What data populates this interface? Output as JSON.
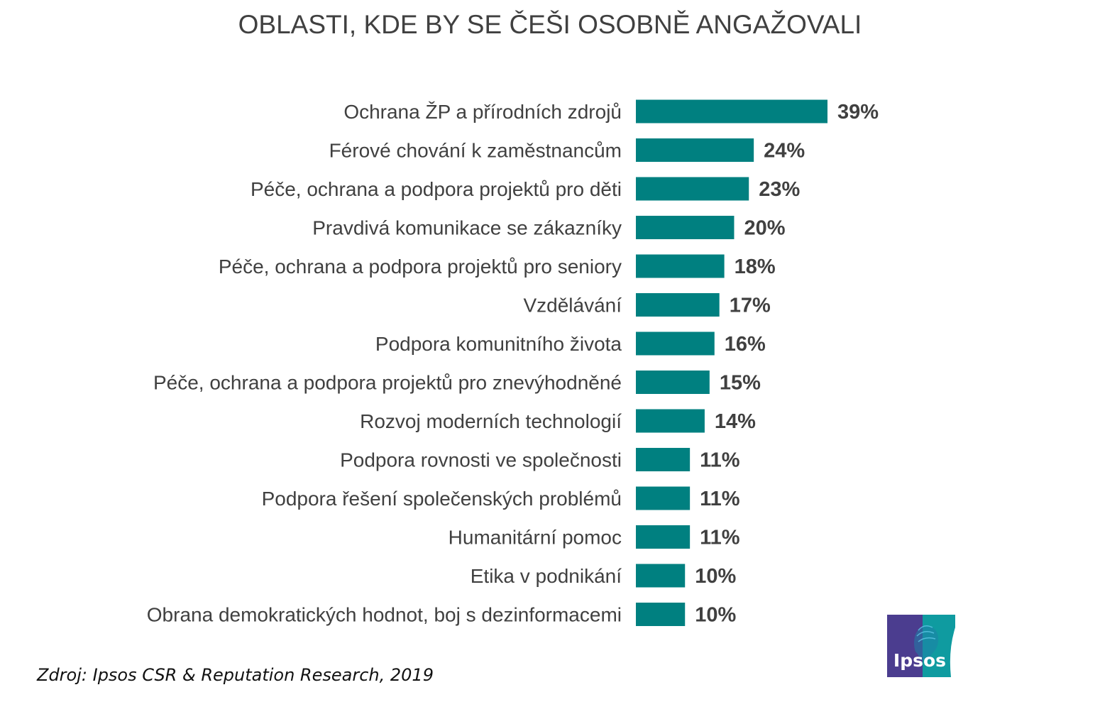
{
  "title": "OBLASTI, KDE BY SE ČEŠI OSOBNĚ ANGAŽOVALI",
  "source": "Zdroj: Ipsos CSR & Reputation Research, 2019",
  "logo": {
    "text": "Ipsos",
    "icon": "ipsos-head-icon",
    "colors": {
      "left": "#4b3d8f",
      "right": "#0f9ba0"
    }
  },
  "colors": {
    "bar": "#008080",
    "text": "#404040"
  },
  "chart_data": {
    "type": "bar",
    "orientation": "horizontal",
    "title": "OBLASTI, KDE BY SE ČEŠI OSOBNĚ ANGAŽOVALI",
    "categories": [
      "Ochrana ŽP a přírodních zdrojů",
      "Férové chování k zaměstnancům",
      "Péče, ochrana a podpora projektů pro děti",
      "Pravdivá komunikace se zákazníky",
      "Péče, ochrana a podpora projektů pro seniory",
      "Vzdělávání",
      "Podpora komunitního života",
      "Péče, ochrana a podpora projektů pro znevýhodněné",
      "Rozvoj moderních technologií",
      "Podpora rovnosti ve společnosti",
      "Podpora řešení společenských problémů",
      "Humanitární pomoc",
      "Etika v podnikání",
      "Obrana demokratických hodnot, boj s dezinformacemi"
    ],
    "values": [
      39,
      24,
      23,
      20,
      18,
      17,
      16,
      15,
      14,
      11,
      11,
      11,
      10,
      10
    ],
    "value_labels": [
      "39%",
      "24%",
      "23%",
      "20%",
      "18%",
      "17%",
      "16%",
      "15%",
      "14%",
      "11%",
      "11%",
      "11%",
      "10%",
      "10%"
    ],
    "unit": "%",
    "xlim": [
      0,
      39
    ],
    "grid": false,
    "legend": "none"
  }
}
